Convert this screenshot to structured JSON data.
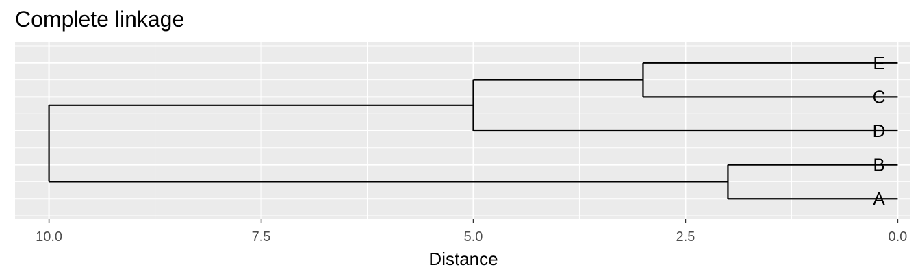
{
  "chart_data": {
    "type": "dendrogram",
    "title": "Complete linkage",
    "xlabel": "Distance",
    "ylabel": "",
    "xlim": [
      10.4,
      -0.15
    ],
    "x_reversed": true,
    "x_ticks": [
      10.0,
      7.5,
      5.0,
      2.5,
      0.0
    ],
    "x_tick_labels": [
      "10.0",
      "7.5",
      "5.0",
      "2.5",
      "0.0"
    ],
    "leaves": [
      "E",
      "C",
      "D",
      "B",
      "A"
    ],
    "merges": [
      {
        "children": [
          "E",
          "C"
        ],
        "height": 3.0
      },
      {
        "children": [
          "E+C",
          "D"
        ],
        "height": 5.0
      },
      {
        "children": [
          "B",
          "A"
        ],
        "height": 2.0
      },
      {
        "children": [
          "E+C+D",
          "B+A"
        ],
        "height": 10.0
      }
    ],
    "grid": true,
    "panel_background": "#ebebeb",
    "grid_color": "#ffffff",
    "line_color": "#000000"
  }
}
